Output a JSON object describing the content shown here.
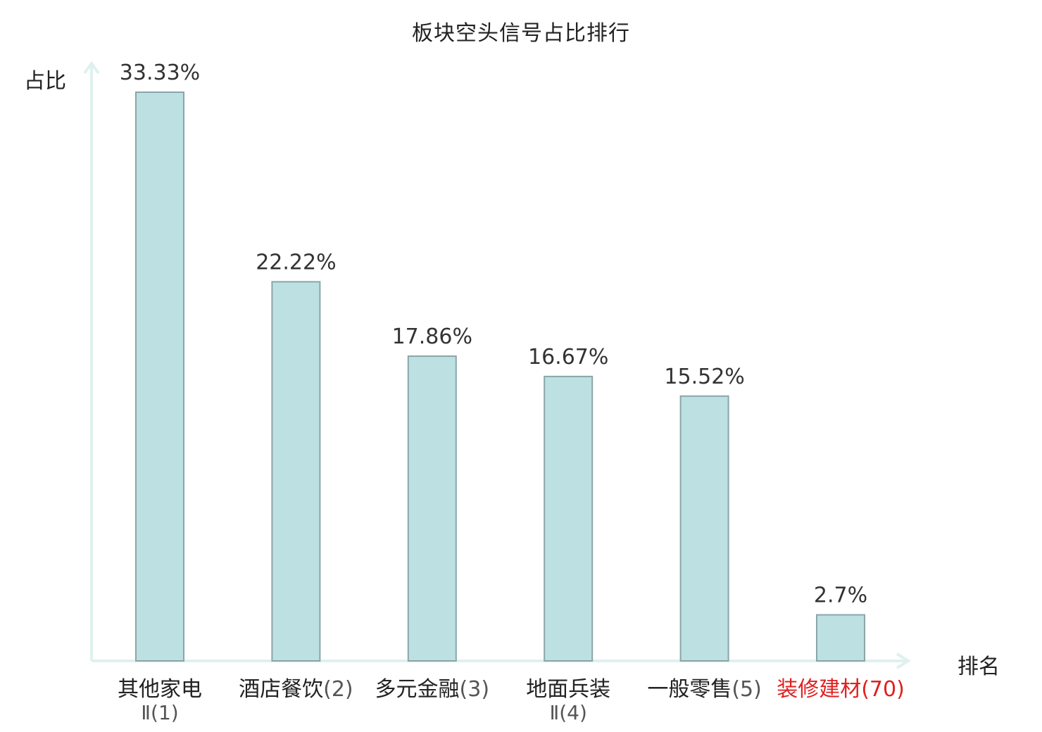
{
  "chart_data": {
    "type": "bar",
    "title": "板块空头信号占比排行",
    "ylabel": "占比",
    "xlabel": "排名",
    "categories": [
      {
        "name": "其他家电",
        "rank_line1": "",
        "rank_line2": "Ⅱ(1)",
        "highlight": false
      },
      {
        "name": "酒店餐饮",
        "rank_line1": "(2)",
        "rank_line2": "",
        "highlight": false
      },
      {
        "name": "多元金融",
        "rank_line1": "(3)",
        "rank_line2": "",
        "highlight": false
      },
      {
        "name": "地面兵装",
        "rank_line1": "",
        "rank_line2": "Ⅱ(4)",
        "highlight": false
      },
      {
        "name": "一般零售",
        "rank_line1": "(5)",
        "rank_line2": "",
        "highlight": false
      },
      {
        "name": "装修建材",
        "rank_line1": "(70)",
        "rank_line2": "",
        "highlight": true
      }
    ],
    "values": [
      33.33,
      22.22,
      17.86,
      16.67,
      15.52,
      2.7
    ],
    "value_labels": [
      "33.33%",
      "22.22%",
      "17.86%",
      "16.67%",
      "15.52%",
      "2.7%"
    ],
    "ylim": [
      0,
      33.33
    ],
    "grid": false,
    "colors": {
      "bar_fill": "#bde0e3",
      "bar_stroke": "#8aa6a8",
      "axis": "#dff1ee",
      "highlight_text": "#e02020"
    }
  }
}
